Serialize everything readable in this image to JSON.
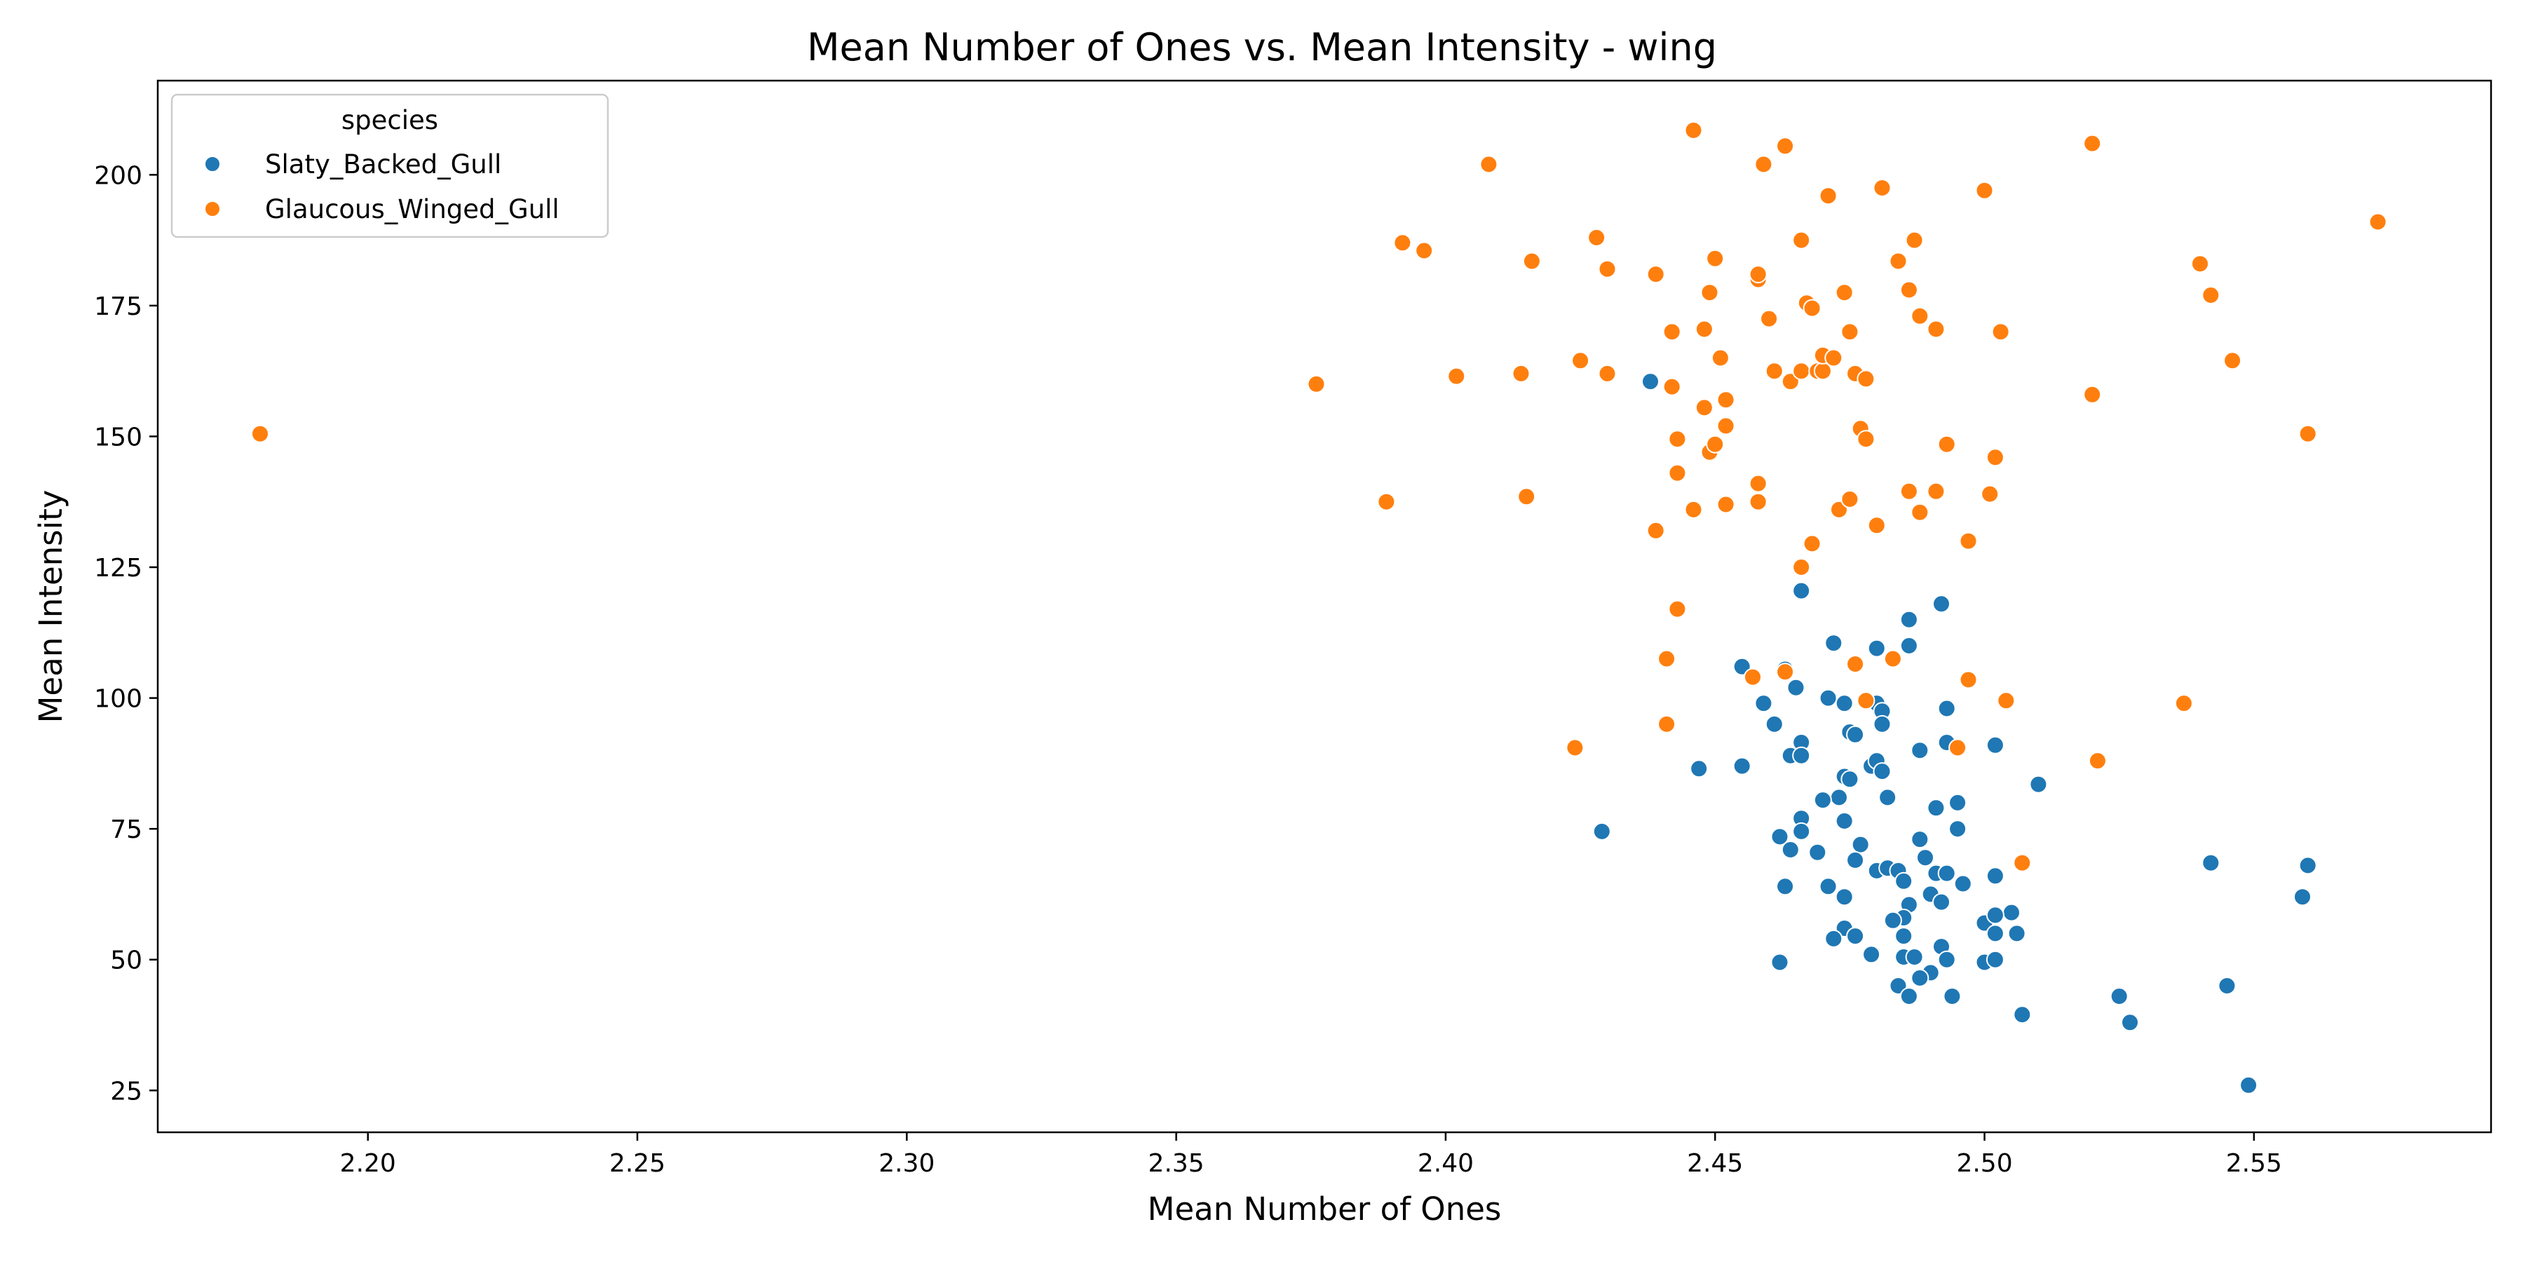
{
  "chart_data": {
    "type": "scatter",
    "title": "Mean Number of Ones vs. Mean Intensity - wing",
    "xlabel": "Mean Number of Ones",
    "ylabel": "Mean Intensity",
    "xlim": [
      2.161,
      2.594
    ],
    "ylim": [
      17,
      218
    ],
    "xticks": [
      "2.20",
      "2.25",
      "2.30",
      "2.35",
      "2.40",
      "2.45",
      "2.50",
      "2.55"
    ],
    "yticks": [
      "25",
      "50",
      "75",
      "100",
      "125",
      "150",
      "175",
      "200"
    ],
    "grid": false,
    "legend": {
      "title": "species",
      "placement": "top-left"
    },
    "series": [
      {
        "name": "Slaty_Backed_Gull",
        "color": "#1f77b4",
        "points": [
          [
            2.438,
            160.5
          ],
          [
            2.466,
            120.5
          ],
          [
            2.492,
            118
          ],
          [
            2.486,
            115
          ],
          [
            2.486,
            110
          ],
          [
            2.472,
            110.5
          ],
          [
            2.48,
            109.5
          ],
          [
            2.455,
            106
          ],
          [
            2.463,
            105.5
          ],
          [
            2.465,
            102
          ],
          [
            2.459,
            99
          ],
          [
            2.471,
            100
          ],
          [
            2.474,
            99
          ],
          [
            2.48,
            99
          ],
          [
            2.481,
            97.5
          ],
          [
            2.493,
            98
          ],
          [
            2.461,
            95
          ],
          [
            2.481,
            95
          ],
          [
            2.475,
            93.5
          ],
          [
            2.476,
            93
          ],
          [
            2.493,
            91.5
          ],
          [
            2.502,
            91
          ],
          [
            2.466,
            91.5
          ],
          [
            2.464,
            89
          ],
          [
            2.466,
            89
          ],
          [
            2.488,
            90
          ],
          [
            2.479,
            87
          ],
          [
            2.48,
            88
          ],
          [
            2.455,
            87
          ],
          [
            2.447,
            86.5
          ],
          [
            2.481,
            86
          ],
          [
            2.474,
            85
          ],
          [
            2.475,
            84.5
          ],
          [
            2.51,
            83.5
          ],
          [
            2.473,
            81
          ],
          [
            2.47,
            80.5
          ],
          [
            2.482,
            81
          ],
          [
            2.495,
            80
          ],
          [
            2.491,
            79
          ],
          [
            2.466,
            77
          ],
          [
            2.474,
            76.5
          ],
          [
            2.429,
            74.5
          ],
          [
            2.462,
            73.5
          ],
          [
            2.466,
            74.5
          ],
          [
            2.495,
            75
          ],
          [
            2.488,
            73
          ],
          [
            2.477,
            72
          ],
          [
            2.464,
            71
          ],
          [
            2.469,
            70.5
          ],
          [
            2.476,
            69
          ],
          [
            2.48,
            67
          ],
          [
            2.489,
            69.5
          ],
          [
            2.482,
            67.5
          ],
          [
            2.484,
            67
          ],
          [
            2.491,
            66.5
          ],
          [
            2.493,
            66.5
          ],
          [
            2.502,
            66
          ],
          [
            2.485,
            65
          ],
          [
            2.496,
            64.5
          ],
          [
            2.463,
            64
          ],
          [
            2.471,
            64
          ],
          [
            2.474,
            62
          ],
          [
            2.486,
            60.5
          ],
          [
            2.49,
            62.5
          ],
          [
            2.492,
            61
          ],
          [
            2.505,
            59
          ],
          [
            2.5,
            57
          ],
          [
            2.502,
            58.5
          ],
          [
            2.485,
            58
          ],
          [
            2.483,
            57.5
          ],
          [
            2.474,
            56
          ],
          [
            2.476,
            54.5
          ],
          [
            2.472,
            54
          ],
          [
            2.485,
            54.5
          ],
          [
            2.502,
            55
          ],
          [
            2.506,
            55
          ],
          [
            2.492,
            52.5
          ],
          [
            2.485,
            50.5
          ],
          [
            2.479,
            51
          ],
          [
            2.487,
            50.5
          ],
          [
            2.493,
            50
          ],
          [
            2.5,
            49.5
          ],
          [
            2.502,
            50
          ],
          [
            2.462,
            49.5
          ],
          [
            2.49,
            47.5
          ],
          [
            2.488,
            46.5
          ],
          [
            2.484,
            45
          ],
          [
            2.486,
            43
          ],
          [
            2.494,
            43
          ],
          [
            2.507,
            39.5
          ],
          [
            2.525,
            43
          ],
          [
            2.527,
            38
          ],
          [
            2.545,
            45
          ],
          [
            2.542,
            68.5
          ],
          [
            2.56,
            68
          ],
          [
            2.559,
            62
          ],
          [
            2.549,
            26
          ]
        ]
      },
      {
        "name": "Glaucous_Winged_Gull",
        "color": "#ff7f0e",
        "points": [
          [
            2.18,
            150.5
          ],
          [
            2.376,
            160
          ],
          [
            2.389,
            137.5
          ],
          [
            2.392,
            187
          ],
          [
            2.396,
            185.5
          ],
          [
            2.402,
            161.5
          ],
          [
            2.408,
            202
          ],
          [
            2.414,
            162
          ],
          [
            2.415,
            138.5
          ],
          [
            2.416,
            183.5
          ],
          [
            2.424,
            90.5
          ],
          [
            2.425,
            164.5
          ],
          [
            2.428,
            188
          ],
          [
            2.43,
            182
          ],
          [
            2.43,
            162
          ],
          [
            2.439,
            181
          ],
          [
            2.439,
            132
          ],
          [
            2.442,
            170
          ],
          [
            2.442,
            159.5
          ],
          [
            2.441,
            107.5
          ],
          [
            2.441,
            95
          ],
          [
            2.443,
            117
          ],
          [
            2.443,
            149.5
          ],
          [
            2.443,
            143
          ],
          [
            2.446,
            208.5
          ],
          [
            2.446,
            136
          ],
          [
            2.448,
            170.5
          ],
          [
            2.448,
            155.5
          ],
          [
            2.449,
            177.5
          ],
          [
            2.449,
            147
          ],
          [
            2.45,
            184
          ],
          [
            2.45,
            148.5
          ],
          [
            2.451,
            165
          ],
          [
            2.452,
            137
          ],
          [
            2.452,
            152
          ],
          [
            2.452,
            157
          ],
          [
            2.457,
            104
          ],
          [
            2.458,
            180
          ],
          [
            2.458,
            181
          ],
          [
            2.458,
            141
          ],
          [
            2.458,
            137.5
          ],
          [
            2.459,
            202
          ],
          [
            2.46,
            172.5
          ],
          [
            2.461,
            162.5
          ],
          [
            2.463,
            105
          ],
          [
            2.463,
            205.5
          ],
          [
            2.464,
            160.5
          ],
          [
            2.466,
            187.5
          ],
          [
            2.466,
            162.5
          ],
          [
            2.466,
            125
          ],
          [
            2.467,
            175.5
          ],
          [
            2.468,
            174.5
          ],
          [
            2.468,
            129.5
          ],
          [
            2.469,
            162.5
          ],
          [
            2.47,
            162.5
          ],
          [
            2.47,
            165.5
          ],
          [
            2.471,
            196
          ],
          [
            2.472,
            165
          ],
          [
            2.473,
            136
          ],
          [
            2.474,
            177.5
          ],
          [
            2.475,
            170
          ],
          [
            2.475,
            138
          ],
          [
            2.476,
            162
          ],
          [
            2.476,
            106.5
          ],
          [
            2.477,
            151.5
          ],
          [
            2.478,
            149.5
          ],
          [
            2.478,
            161
          ],
          [
            2.478,
            99.5
          ],
          [
            2.48,
            133
          ],
          [
            2.481,
            197.5
          ],
          [
            2.483,
            107.5
          ],
          [
            2.484,
            183.5
          ],
          [
            2.486,
            178
          ],
          [
            2.486,
            139.5
          ],
          [
            2.487,
            187.5
          ],
          [
            2.488,
            173
          ],
          [
            2.488,
            135.5
          ],
          [
            2.491,
            170.5
          ],
          [
            2.491,
            139.5
          ],
          [
            2.493,
            148.5
          ],
          [
            2.495,
            90.5
          ],
          [
            2.497,
            103.5
          ],
          [
            2.497,
            130
          ],
          [
            2.5,
            197
          ],
          [
            2.501,
            139
          ],
          [
            2.502,
            146
          ],
          [
            2.503,
            170
          ],
          [
            2.504,
            99.5
          ],
          [
            2.507,
            68.5
          ],
          [
            2.52,
            206
          ],
          [
            2.52,
            158
          ],
          [
            2.521,
            88
          ],
          [
            2.537,
            99
          ],
          [
            2.54,
            183
          ],
          [
            2.542,
            177
          ],
          [
            2.546,
            164.5
          ],
          [
            2.56,
            150.5
          ],
          [
            2.573,
            191
          ]
        ]
      }
    ]
  }
}
